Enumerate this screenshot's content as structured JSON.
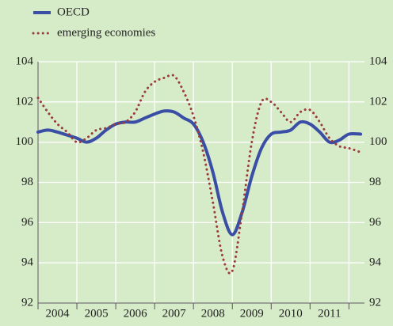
{
  "chart_data": {
    "type": "line",
    "x": [
      2004.0,
      2004.25,
      2004.5,
      2004.75,
      2005.0,
      2005.25,
      2005.5,
      2005.75,
      2006.0,
      2006.25,
      2006.5,
      2006.75,
      2007.0,
      2007.25,
      2007.5,
      2007.75,
      2008.0,
      2008.25,
      2008.5,
      2008.75,
      2009.0,
      2009.25,
      2009.5,
      2009.75,
      2010.0,
      2010.25,
      2010.5,
      2010.75,
      2011.0,
      2011.25,
      2011.5,
      2011.75,
      2012.0,
      2012.3
    ],
    "series": [
      {
        "name": "OECD",
        "color": "#3b4ea6",
        "style": "solid",
        "values": [
          100.5,
          100.6,
          100.5,
          100.35,
          100.2,
          100.0,
          100.2,
          100.6,
          100.9,
          101.0,
          101.0,
          101.2,
          101.4,
          101.55,
          101.5,
          101.2,
          100.9,
          100.0,
          98.5,
          96.5,
          95.4,
          96.5,
          98.3,
          99.7,
          100.4,
          100.5,
          100.6,
          101.0,
          100.9,
          100.5,
          100.0,
          100.1,
          100.4,
          100.4
        ]
      },
      {
        "name": "emerging economies",
        "color": "#9b3b3b",
        "style": "dotted",
        "values": [
          102.2,
          101.5,
          100.9,
          100.5,
          100.0,
          100.2,
          100.6,
          100.7,
          100.9,
          101.0,
          101.5,
          102.5,
          103.0,
          103.2,
          103.3,
          102.5,
          101.3,
          99.5,
          97.0,
          94.3,
          93.6,
          96.5,
          100.0,
          102.0,
          102.0,
          101.5,
          101.0,
          101.5,
          101.6,
          101.0,
          100.2,
          99.8,
          99.7,
          99.5
        ]
      }
    ],
    "xlim": [
      2004,
      2012.4
    ],
    "xticks": [
      2004,
      2005,
      2006,
      2007,
      2008,
      2009,
      2010,
      2011
    ],
    "ylim": [
      92,
      104
    ],
    "yticks": [
      92,
      94,
      96,
      98,
      100,
      102,
      104
    ],
    "grid": true
  }
}
